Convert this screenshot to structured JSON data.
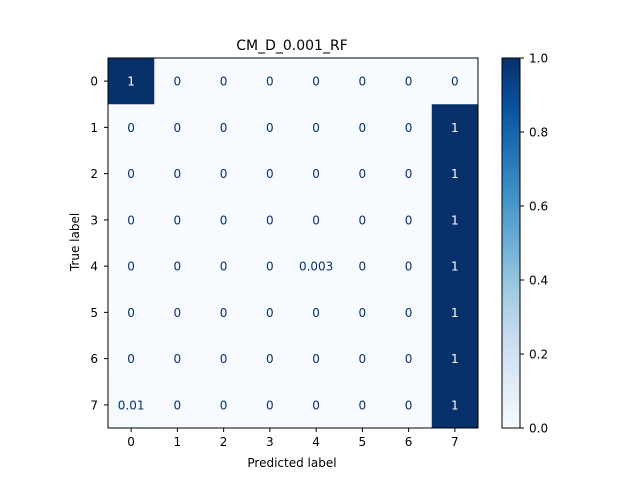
{
  "chart_data": {
    "type": "heatmap",
    "title": "CM_D_0.001_RF",
    "xlabel": "Predicted label",
    "ylabel": "True label",
    "x_categories": [
      "0",
      "1",
      "2",
      "3",
      "4",
      "5",
      "6",
      "7"
    ],
    "y_categories": [
      "0",
      "1",
      "2",
      "3",
      "4",
      "5",
      "6",
      "7"
    ],
    "values": [
      [
        1,
        0,
        0,
        0,
        0,
        0,
        0,
        0
      ],
      [
        0,
        0,
        0,
        0,
        0,
        0,
        0,
        1
      ],
      [
        0,
        0,
        0,
        0,
        0,
        0,
        0,
        1
      ],
      [
        0,
        0,
        0,
        0,
        0,
        0,
        0,
        1
      ],
      [
        0,
        0,
        0,
        0,
        0.003,
        0,
        0,
        1
      ],
      [
        0,
        0,
        0,
        0,
        0,
        0,
        0,
        1
      ],
      [
        0,
        0,
        0,
        0,
        0,
        0,
        0,
        1
      ],
      [
        0.01,
        0,
        0,
        0,
        0,
        0,
        0,
        1
      ]
    ],
    "cell_labels": [
      [
        "1",
        "0",
        "0",
        "0",
        "0",
        "0",
        "0",
        "0"
      ],
      [
        "0",
        "0",
        "0",
        "0",
        "0",
        "0",
        "0",
        "1"
      ],
      [
        "0",
        "0",
        "0",
        "0",
        "0",
        "0",
        "0",
        "1"
      ],
      [
        "0",
        "0",
        "0",
        "0",
        "0",
        "0",
        "0",
        "1"
      ],
      [
        "0",
        "0",
        "0",
        "0",
        "0.003",
        "0",
        "0",
        "1"
      ],
      [
        "0",
        "0",
        "0",
        "0",
        "0",
        "0",
        "0",
        "1"
      ],
      [
        "0",
        "0",
        "0",
        "0",
        "0",
        "0",
        "0",
        "1"
      ],
      [
        "0.01",
        "0",
        "0",
        "0",
        "0",
        "0",
        "0",
        "1"
      ]
    ],
    "colorbar": {
      "range": [
        0.0,
        1.0
      ],
      "ticks": [
        "0.0",
        "0.2",
        "0.4",
        "0.6",
        "0.8",
        "1.0"
      ],
      "colormap": "Blues",
      "low_color": "#f7fbff",
      "high_color": "#08306b"
    },
    "text_color_dark_bg": "#ffffff",
    "text_color_light_bg": "#08306b"
  }
}
